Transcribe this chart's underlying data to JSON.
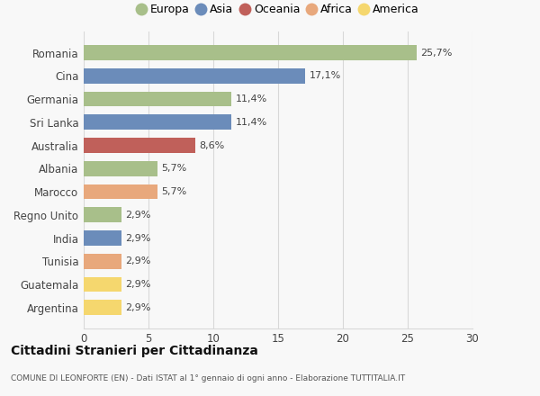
{
  "categories": [
    "Argentina",
    "Guatemala",
    "Tunisia",
    "India",
    "Regno Unito",
    "Marocco",
    "Albania",
    "Australia",
    "Sri Lanka",
    "Germania",
    "Cina",
    "Romania"
  ],
  "values": [
    2.9,
    2.9,
    2.9,
    2.9,
    2.9,
    5.7,
    5.7,
    8.6,
    11.4,
    11.4,
    17.1,
    25.7
  ],
  "labels": [
    "2,9%",
    "2,9%",
    "2,9%",
    "2,9%",
    "2,9%",
    "5,7%",
    "5,7%",
    "8,6%",
    "11,4%",
    "11,4%",
    "17,1%",
    "25,7%"
  ],
  "colors": [
    "#f5d76e",
    "#f5d76e",
    "#e8a87c",
    "#6b8cba",
    "#a8bf8a",
    "#e8a87c",
    "#a8bf8a",
    "#c0605a",
    "#6b8cba",
    "#a8bf8a",
    "#6b8cba",
    "#a8bf8a"
  ],
  "legend_labels": [
    "Europa",
    "Asia",
    "Oceania",
    "Africa",
    "America"
  ],
  "legend_colors": [
    "#a8bf8a",
    "#6b8cba",
    "#c0605a",
    "#e8a87c",
    "#f5d76e"
  ],
  "title": "Cittadini Stranieri per Cittadinanza",
  "subtitle": "COMUNE DI LEONFORTE (EN) - Dati ISTAT al 1° gennaio di ogni anno - Elaborazione TUTTITALIA.IT",
  "xlim": [
    0,
    30
  ],
  "xticks": [
    0,
    5,
    10,
    15,
    20,
    25,
    30
  ],
  "bg_color": "#f8f8f8",
  "bar_height": 0.65,
  "grid_color": "#d8d8d8"
}
